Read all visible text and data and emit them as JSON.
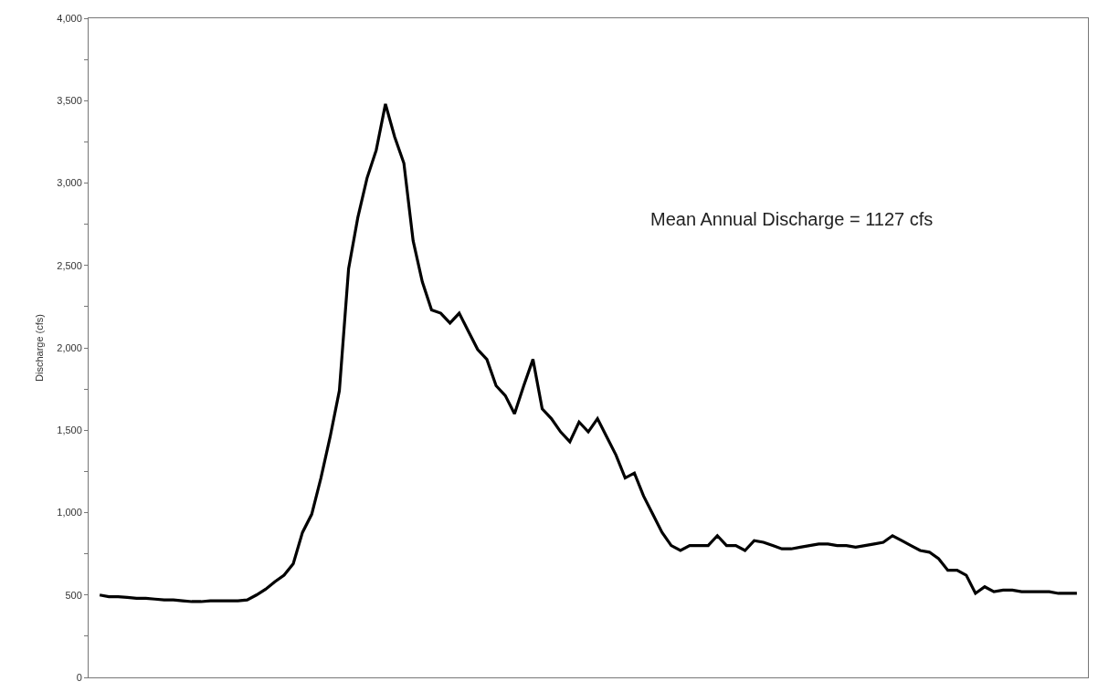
{
  "chart_data": {
    "type": "line",
    "ylabel": "Discharge (cfs)",
    "categories": [
      null,
      null,
      null,
      null,
      null,
      null,
      null,
      null,
      null,
      null,
      null,
      null,
      null,
      null,
      null,
      null,
      null,
      null,
      null,
      null,
      null,
      null,
      null,
      null,
      null,
      null,
      null,
      null,
      null,
      null,
      null,
      null,
      null,
      null,
      null,
      null,
      null,
      null,
      null,
      null,
      null,
      null,
      null,
      null,
      null,
      null,
      null,
      null,
      null,
      null,
      null,
      null,
      null,
      null,
      null,
      null,
      null,
      null,
      null,
      null,
      null,
      null,
      null,
      null,
      null,
      null,
      null,
      null,
      null,
      null,
      null,
      null,
      null,
      null,
      null,
      null,
      null,
      null,
      null,
      null,
      null,
      null,
      null,
      null,
      null,
      null,
      null,
      null,
      null,
      null,
      null,
      null,
      null,
      null,
      null,
      null,
      null,
      null,
      null,
      null,
      null,
      null,
      null,
      null,
      null,
      null,
      null
    ],
    "series": [
      {
        "color": "#000000",
        "values": [
          500,
          490,
          490,
          485,
          480,
          480,
          475,
          470,
          470,
          465,
          460,
          460,
          465,
          465,
          465,
          465,
          470,
          500,
          535,
          580,
          620,
          690,
          880,
          990,
          1210,
          1460,
          1740,
          2480,
          2790,
          3030,
          3200,
          3480,
          3280,
          3120,
          2650,
          2400,
          2230,
          2210,
          2150,
          2210,
          2100,
          1990,
          1930,
          1770,
          1710,
          1600,
          1770,
          1930,
          1630,
          1570,
          1490,
          1430,
          1550,
          1490,
          1570,
          1460,
          1350,
          1210,
          1240,
          1100,
          990,
          880,
          800,
          770,
          800,
          800,
          800,
          860,
          800,
          800,
          770,
          830,
          820,
          800,
          780,
          780,
          790,
          800,
          810,
          810,
          800,
          800,
          790,
          800,
          810,
          820,
          860,
          830,
          800,
          770,
          760,
          720,
          650,
          650,
          620,
          510,
          550,
          520,
          530,
          530,
          520,
          520,
          520,
          520,
          510,
          510,
          510
        ]
      }
    ],
    "ylim": [
      0,
      4000
    ],
    "yticks": [
      0,
      {
        "value": 250,
        "label": null
      },
      {
        "value": 500,
        "label": "500"
      },
      {
        "value": 750,
        "label": null
      },
      {
        "value": 1000,
        "label": "1,000"
      },
      {
        "value": 1250,
        "label": null
      },
      {
        "value": 1500,
        "label": "1,500"
      },
      {
        "value": 1750,
        "label": null
      },
      {
        "value": 2000,
        "label": "2,000"
      },
      {
        "value": 2250,
        "label": null
      },
      {
        "value": 2500,
        "label": "2,500"
      },
      {
        "value": 2750,
        "label": null
      },
      {
        "value": 3000,
        "label": "3,000"
      },
      {
        "value": 3250,
        "label": null
      },
      {
        "value": 3500,
        "label": "3,500"
      },
      {
        "value": 3750,
        "label": null
      },
      {
        "value": 4000,
        "label": "4,000"
      }
    ],
    "grid": false,
    "marker": "none",
    "line_style": "solid",
    "annotations": [
      "Mean Annual Discharge = 1127 cfs"
    ]
  }
}
